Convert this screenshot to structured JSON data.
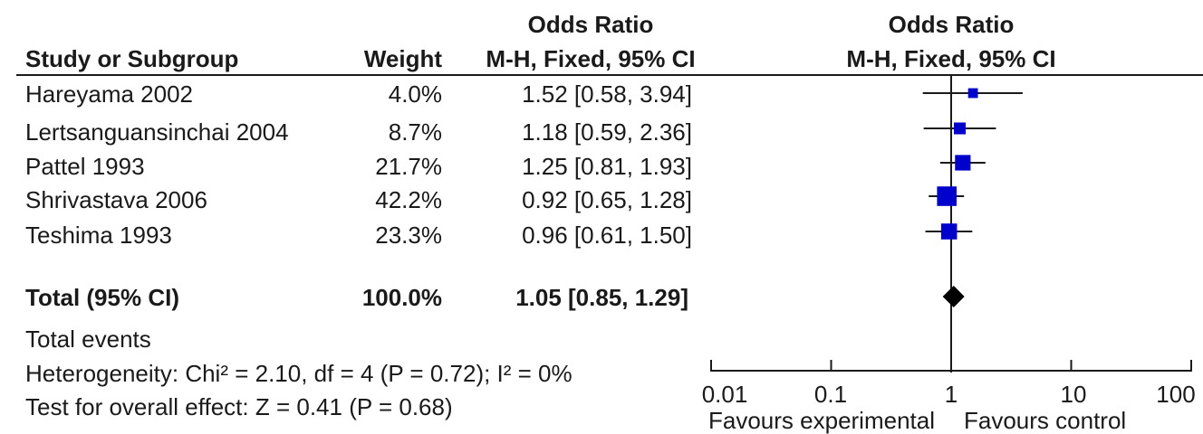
{
  "table": {
    "header_group": "Odds Ratio",
    "header_plot_group": "Odds Ratio",
    "col_study": "Study or Subgroup",
    "col_weight": "Weight",
    "col_or": "M-H, Fixed, 95% CI",
    "col_plot": "M-H, Fixed, 95% CI",
    "rows": [
      {
        "study": "Hareyama 2002",
        "weight": "4.0%",
        "ci_text": "1.52 [0.58, 3.94]"
      },
      {
        "study": "Lertsanguansinchai 2004",
        "weight": "8.7%",
        "ci_text": "1.18 [0.59, 2.36]"
      },
      {
        "study": "Pattel 1993",
        "weight": "21.7%",
        "ci_text": "1.25 [0.81, 1.93]"
      },
      {
        "study": "Shrivastava 2006",
        "weight": "42.2%",
        "ci_text": "0.92 [0.65, 1.28]"
      },
      {
        "study": "Teshima 1993",
        "weight": "23.3%",
        "ci_text": "0.96 [0.61, 1.50]"
      }
    ],
    "total": {
      "label": "Total (95% CI)",
      "weight": "100.0%",
      "ci_text": "1.05 [0.85, 1.29]"
    },
    "total_events": "Total events",
    "heterogeneity": "Heterogeneity: Chi² = 2.10, df = 4 (P = 0.72); I² = 0%",
    "overall_effect": "Test for overall effect: Z = 0.41 (P = 0.68)"
  },
  "chart_data": {
    "type": "forest",
    "scale": "log",
    "xlim": [
      0.01,
      100
    ],
    "xticks": [
      "0.01",
      "0.1",
      "1",
      "10",
      "100"
    ],
    "xtick_values": [
      0.01,
      0.1,
      1,
      10,
      100
    ],
    "favours_left": "Favours experimental",
    "favours_right": "Favours control",
    "marker_color": "#0000cc",
    "studies": [
      {
        "name": "Hareyama 2002",
        "or": 1.52,
        "lo": 0.58,
        "hi": 3.94,
        "weight": 4.0
      },
      {
        "name": "Lertsanguansinchai 2004",
        "or": 1.18,
        "lo": 0.59,
        "hi": 2.36,
        "weight": 8.7
      },
      {
        "name": "Pattel 1993",
        "or": 1.25,
        "lo": 0.81,
        "hi": 1.93,
        "weight": 21.7
      },
      {
        "name": "Shrivastava 2006",
        "or": 0.92,
        "lo": 0.65,
        "hi": 1.28,
        "weight": 42.2
      },
      {
        "name": "Teshima 1993",
        "or": 0.96,
        "lo": 0.61,
        "hi": 1.5,
        "weight": 23.3
      }
    ],
    "pooled": {
      "or": 1.05,
      "lo": 0.85,
      "hi": 1.29
    }
  }
}
